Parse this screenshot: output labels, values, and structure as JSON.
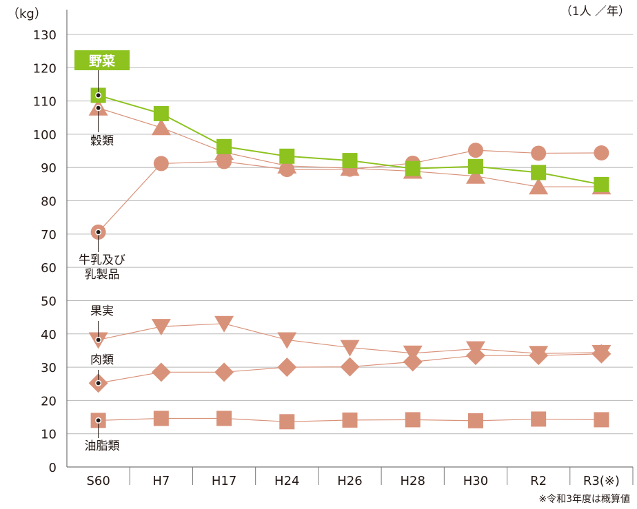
{
  "chart_data": {
    "type": "line",
    "unit_label": "（kg）",
    "per_label": "（1人 ／年）",
    "footnote": "※令和3年度は概算値",
    "categories": [
      "S60",
      "H7",
      "H17",
      "H24",
      "H26",
      "H28",
      "H30",
      "R2",
      "R3(※)"
    ],
    "ylim": [
      0,
      130
    ],
    "yticks": [
      0,
      10,
      20,
      30,
      40,
      50,
      60,
      70,
      80,
      90,
      100,
      110,
      120,
      130
    ],
    "grid": true,
    "series": [
      {
        "name": "野菜",
        "marker": "square",
        "color": "#8dc21f",
        "values": [
          111.7,
          106.2,
          96.3,
          93.4,
          92.1,
          89.7,
          90.3,
          88.5,
          84.9
        ]
      },
      {
        "name": "穀類",
        "marker": "triangle-up",
        "color": "#d9927a",
        "values": [
          107.9,
          102.0,
          94.6,
          90.5,
          89.8,
          88.9,
          87.4,
          84.2,
          84.2
        ]
      },
      {
        "name": "牛乳及び乳製品",
        "marker": "circle",
        "color": "#d9927a",
        "values": [
          70.6,
          91.2,
          91.8,
          89.4,
          89.5,
          91.3,
          95.2,
          94.3,
          94.4
        ]
      },
      {
        "name": "果実",
        "marker": "triangle-down",
        "color": "#d9927a",
        "values": [
          38.2,
          42.2,
          43.1,
          38.2,
          35.9,
          34.2,
          35.5,
          34.1,
          34.4
        ]
      },
      {
        "name": "肉類",
        "marker": "diamond",
        "color": "#d9927a",
        "values": [
          25.2,
          28.5,
          28.5,
          30.0,
          30.1,
          31.6,
          33.5,
          33.5,
          34.0
        ]
      },
      {
        "name": "油脂類",
        "marker": "square",
        "color": "#d9927a",
        "values": [
          14.0,
          14.6,
          14.6,
          13.6,
          14.1,
          14.2,
          13.9,
          14.4,
          14.2
        ]
      }
    ],
    "annotations": [
      {
        "text": "野菜",
        "series": 0
      },
      {
        "text": "穀類",
        "series": 1
      },
      {
        "text": "牛乳及び\n乳製品",
        "series": 2
      },
      {
        "text": "果実",
        "series": 3
      },
      {
        "text": "肉類",
        "series": 4
      },
      {
        "text": "油脂類",
        "series": 5
      }
    ]
  }
}
